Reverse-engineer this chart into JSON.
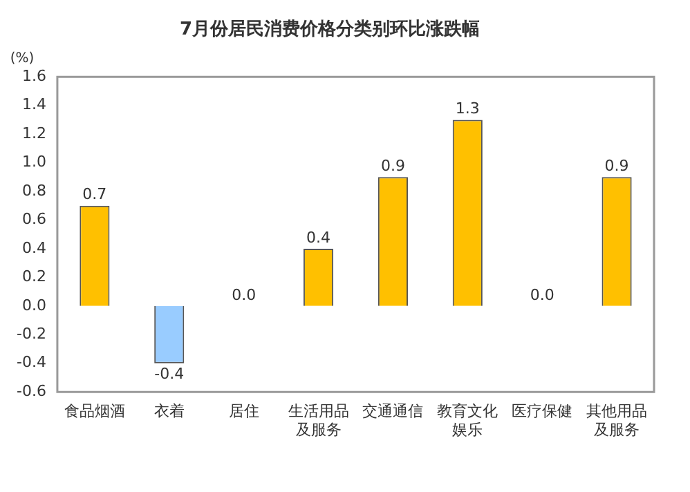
{
  "chart_data": {
    "type": "bar",
    "title": "7月份居民消费价格分类别环比涨跌幅",
    "ylabel": "(%)",
    "categories": [
      "食品烟酒",
      "衣着",
      "居住",
      "生活用品及服务",
      "交通通信",
      "教育文化娱乐",
      "医疗保健",
      "其他用品及服务"
    ],
    "values": [
      0.7,
      -0.4,
      0.0,
      0.4,
      0.9,
      1.3,
      0.0,
      0.9
    ],
    "value_labels": [
      "0.7",
      "-0.4",
      "0.0",
      "0.4",
      "0.9",
      "1.3",
      "0.0",
      "0.9"
    ],
    "colors": [
      "#ffc000",
      "#99ccff",
      "#ffc000",
      "#ffc000",
      "#ffc000",
      "#ffc000",
      "#ffc000",
      "#ffc000"
    ],
    "ylim": [
      -0.6,
      1.6
    ],
    "yticks": [
      -0.6,
      -0.4,
      -0.2,
      {
        "value": 0,
        "label": "0.0"
      },
      0.2,
      0.4,
      0.6,
      0.8,
      {
        "value": 1,
        "label": "1.0"
      },
      1.2,
      1.4,
      1.6
    ],
    "grid": false,
    "legend": false
  }
}
